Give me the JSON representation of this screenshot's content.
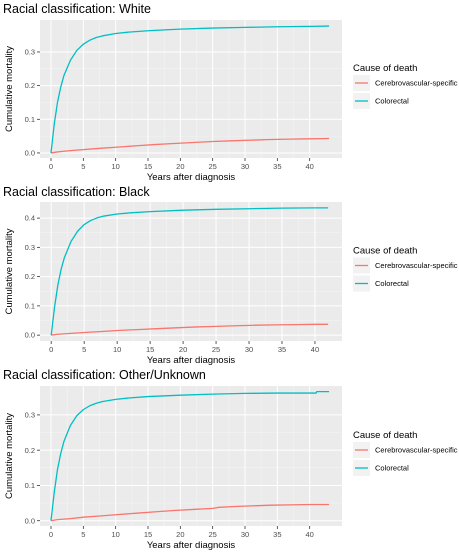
{
  "chart_data": [
    {
      "type": "line",
      "title": "Racial classification: White",
      "xlabel": "Years after diagnosis",
      "ylabel": "Cumulative mortality",
      "xlim": [
        -1.7,
        45.0
      ],
      "ylim": [
        -0.015,
        0.395
      ],
      "x_ticks": [
        0,
        5,
        10,
        15,
        20,
        25,
        30,
        35,
        40
      ],
      "y_ticks": [
        0.0,
        0.1,
        0.2,
        0.3
      ],
      "y_tick_labels": [
        "0.0",
        "0.1",
        "0.2",
        "0.3"
      ],
      "grid": true,
      "legend": {
        "title": "Cause of death",
        "position": "right"
      },
      "series": [
        {
          "name": "Cerebrovascular-specific",
          "color": "#F8766D",
          "x": [
            0,
            1,
            2,
            3,
            5,
            7,
            10,
            13,
            16,
            19,
            22,
            25,
            28,
            31,
            34,
            37,
            40,
            43
          ],
          "y": [
            0.0,
            0.003,
            0.005,
            0.007,
            0.01,
            0.013,
            0.017,
            0.021,
            0.025,
            0.028,
            0.031,
            0.034,
            0.036,
            0.038,
            0.04,
            0.041,
            0.042,
            0.043
          ]
        },
        {
          "name": "Colorectal",
          "color": "#00BFC4",
          "x": [
            0,
            0.5,
            1,
            1.5,
            2,
            3,
            4,
            5,
            6,
            7,
            8,
            10,
            12,
            15,
            18,
            20,
            25,
            30,
            35,
            40,
            43
          ],
          "y": [
            0.0,
            0.085,
            0.15,
            0.195,
            0.23,
            0.275,
            0.305,
            0.323,
            0.335,
            0.343,
            0.348,
            0.355,
            0.359,
            0.363,
            0.366,
            0.368,
            0.371,
            0.373,
            0.375,
            0.376,
            0.377
          ]
        }
      ]
    },
    {
      "type": "line",
      "title": "Racial classification: Black",
      "xlabel": "Years after diagnosis",
      "ylabel": "Cumulative mortality",
      "xlim": [
        -1.7,
        44.1
      ],
      "ylim": [
        -0.02,
        0.455
      ],
      "x_ticks": [
        0,
        5,
        10,
        15,
        20,
        25,
        30,
        35,
        40
      ],
      "y_ticks": [
        0.0,
        0.1,
        0.2,
        0.3,
        0.4
      ],
      "y_tick_labels": [
        "0.0",
        "0.1",
        "0.2",
        "0.3",
        "0.4"
      ],
      "grid": true,
      "legend": {
        "title": "Cause of death",
        "position": "right"
      },
      "series": [
        {
          "name": "Cerebrovascular-specific",
          "color": "#F8766D",
          "x": [
            0,
            1,
            3,
            5,
            8,
            10,
            13,
            16,
            19,
            22,
            25,
            28,
            31,
            34,
            37,
            40,
            42
          ],
          "y": [
            0.0,
            0.003,
            0.006,
            0.009,
            0.013,
            0.016,
            0.019,
            0.022,
            0.025,
            0.028,
            0.03,
            0.032,
            0.034,
            0.035,
            0.036,
            0.037,
            0.037
          ]
        },
        {
          "name": "Colorectal",
          "color": "#00BFC4",
          "x": [
            0,
            0.5,
            1,
            1.5,
            2,
            3,
            4,
            5,
            6,
            7,
            8,
            10,
            12,
            15,
            20,
            25,
            30,
            35,
            40,
            42
          ],
          "y": [
            0.0,
            0.095,
            0.17,
            0.225,
            0.265,
            0.32,
            0.355,
            0.378,
            0.392,
            0.401,
            0.407,
            0.414,
            0.418,
            0.422,
            0.427,
            0.43,
            0.432,
            0.434,
            0.435,
            0.435
          ]
        }
      ]
    },
    {
      "type": "line",
      "title": "Racial classification: Other/Unknown",
      "xlabel": "Years after diagnosis",
      "ylabel": "Cumulative mortality",
      "xlim": [
        -1.7,
        45.0
      ],
      "ylim": [
        -0.015,
        0.382
      ],
      "x_ticks": [
        0,
        5,
        10,
        15,
        20,
        25,
        30,
        35,
        40
      ],
      "y_ticks": [
        0.0,
        0.1,
        0.2,
        0.3
      ],
      "y_tick_labels": [
        "0.0",
        "0.1",
        "0.2",
        "0.3"
      ],
      "grid": true,
      "legend": {
        "title": "Cause of death",
        "position": "right"
      },
      "series": [
        {
          "name": "Cerebrovascular-specific",
          "color": "#F8766D",
          "x": [
            0,
            1,
            3,
            5,
            8,
            10,
            13,
            16,
            19,
            22,
            25,
            26,
            28,
            31,
            34,
            37,
            40,
            43
          ],
          "y": [
            0.0,
            0.003,
            0.006,
            0.01,
            0.014,
            0.017,
            0.021,
            0.025,
            0.029,
            0.032,
            0.035,
            0.038,
            0.04,
            0.042,
            0.044,
            0.045,
            0.046,
            0.046
          ]
        },
        {
          "name": "Colorectal",
          "color": "#00BFC4",
          "x": [
            0,
            0.5,
            1,
            1.5,
            2,
            3,
            4,
            5,
            6,
            7,
            8,
            10,
            12,
            15,
            20,
            25,
            30,
            35,
            40,
            41,
            41.1,
            43
          ],
          "y": [
            0.0,
            0.08,
            0.145,
            0.19,
            0.225,
            0.27,
            0.298,
            0.315,
            0.326,
            0.333,
            0.338,
            0.344,
            0.348,
            0.352,
            0.356,
            0.359,
            0.361,
            0.362,
            0.362,
            0.362,
            0.366,
            0.366
          ]
        }
      ]
    }
  ]
}
